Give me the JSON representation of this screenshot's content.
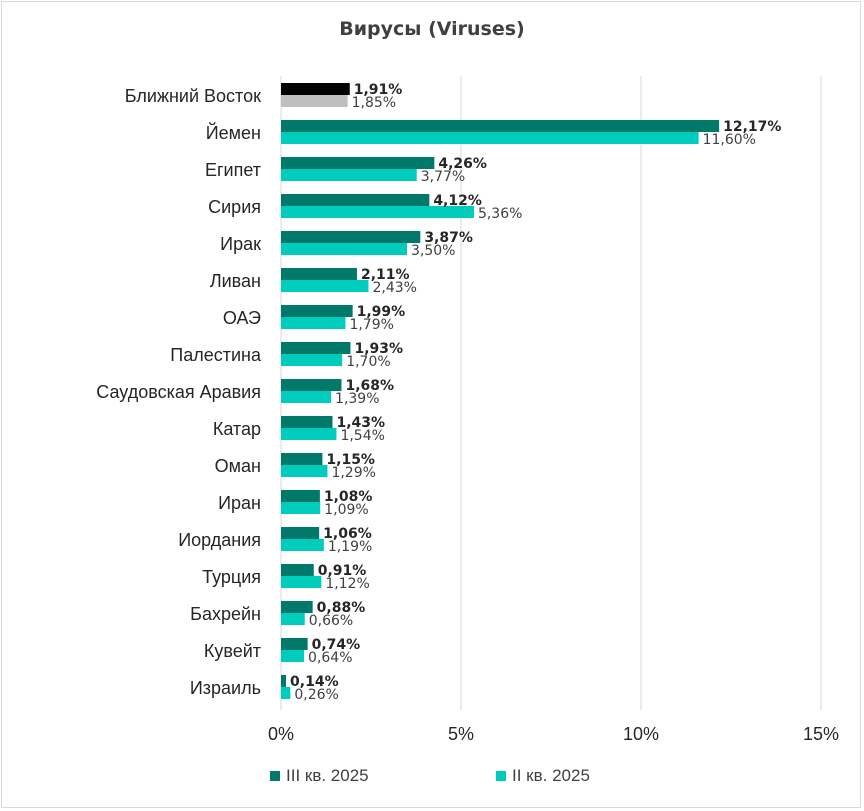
{
  "chart_data": {
    "type": "bar",
    "orientation": "horizontal",
    "title": "Вирусы (Viruses)",
    "categories": [
      "Ближний Восток",
      "Йемен",
      "Египет",
      "Сирия",
      "Ирак",
      "Ливан",
      "ОАЭ",
      "Палестина",
      "Саудовская Аравия",
      "Катар",
      "Оман",
      "Иран",
      "Иордания",
      "Турция",
      "Бахрейн",
      "Кувейт",
      "Израиль"
    ],
    "series": [
      {
        "name": "III кв. 2025",
        "values": [
          1.91,
          12.17,
          4.26,
          4.12,
          3.87,
          2.11,
          1.99,
          1.93,
          1.68,
          1.43,
          1.15,
          1.08,
          1.06,
          0.91,
          0.88,
          0.74,
          0.14
        ],
        "labels": [
          "1,91%",
          "12,17%",
          "4,26%",
          "4,12%",
          "3,87%",
          "2,11%",
          "1,99%",
          "1,93%",
          "1,68%",
          "1,43%",
          "1,15%",
          "1,08%",
          "1,06%",
          "0,91%",
          "0,88%",
          "0,74%",
          "0,14%"
        ],
        "color": "#00796b",
        "first_bar_color": "#000000"
      },
      {
        "name": "II кв. 2025",
        "values": [
          1.85,
          11.6,
          3.77,
          5.36,
          3.5,
          2.43,
          1.79,
          1.7,
          1.39,
          1.54,
          1.29,
          1.09,
          1.19,
          1.12,
          0.66,
          0.64,
          0.26
        ],
        "labels": [
          "1,85%",
          "11,60%",
          "3,77%",
          "5,36%",
          "3,50%",
          "2,43%",
          "1,79%",
          "1,70%",
          "1,39%",
          "1,54%",
          "1,29%",
          "1,09%",
          "1,19%",
          "1,12%",
          "0,66%",
          "0,64%",
          "0,26%"
        ],
        "color": "#00ccbe",
        "first_bar_color": "#bfbfbf"
      }
    ],
    "xlim": [
      0,
      15
    ],
    "xticks": [
      0,
      5,
      10,
      15
    ],
    "xtick_labels": [
      "0%",
      "5%",
      "10%",
      "15%"
    ],
    "grid": true,
    "legend_position": "bottom"
  }
}
